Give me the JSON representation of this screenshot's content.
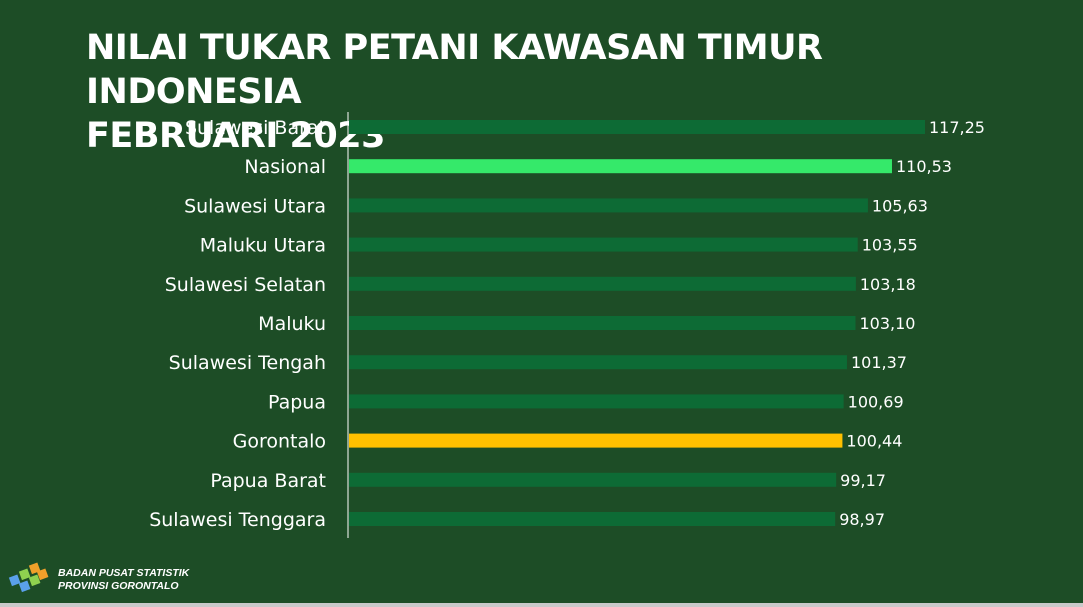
{
  "title_lines": [
    "NILAI TUKAR PETANI KAWASAN TIMUR INDONESIA",
    "FEBRUARI 2023"
  ],
  "footer": {
    "org_line1": "BADAN PUSAT STATISTIK",
    "org_line2": "PROVINSI GORONTALO",
    "logo_icon": "bps-logo-icon"
  },
  "colors": {
    "background": "#1d4d26",
    "bar_default": "#0d6b35",
    "bar_national": "#35e96a",
    "bar_gorontalo": "#ffc000",
    "axis": "#ffffff"
  },
  "chart_data": {
    "type": "bar",
    "orientation": "horizontal",
    "title": "NILAI TUKAR PETANI KAWASAN TIMUR INDONESIA FEBRUARI 2023",
    "categories": [
      "Sulawesi Barat",
      "Nasional",
      "Sulawesi Utara",
      "Maluku Utara",
      "Sulawesi Selatan",
      "Maluku",
      "Sulawesi Tengah",
      "Papua",
      "Gorontalo",
      "Papua Barat",
      "Sulawesi Tenggara"
    ],
    "values": [
      117.25,
      110.53,
      105.63,
      103.55,
      103.18,
      103.1,
      101.37,
      100.69,
      100.44,
      99.17,
      98.97
    ],
    "value_labels": [
      "117,25",
      "110,53",
      "105,63",
      "103,55",
      "103,18",
      "103,10",
      "101,37",
      "100,69",
      "100,44",
      "99,17",
      "98,97"
    ],
    "highlights": {
      "Nasional": "#35e96a",
      "Gorontalo": "#ffc000"
    },
    "xlim": [
      0,
      117.25
    ],
    "grid": false,
    "xlabel": "",
    "ylabel": ""
  }
}
